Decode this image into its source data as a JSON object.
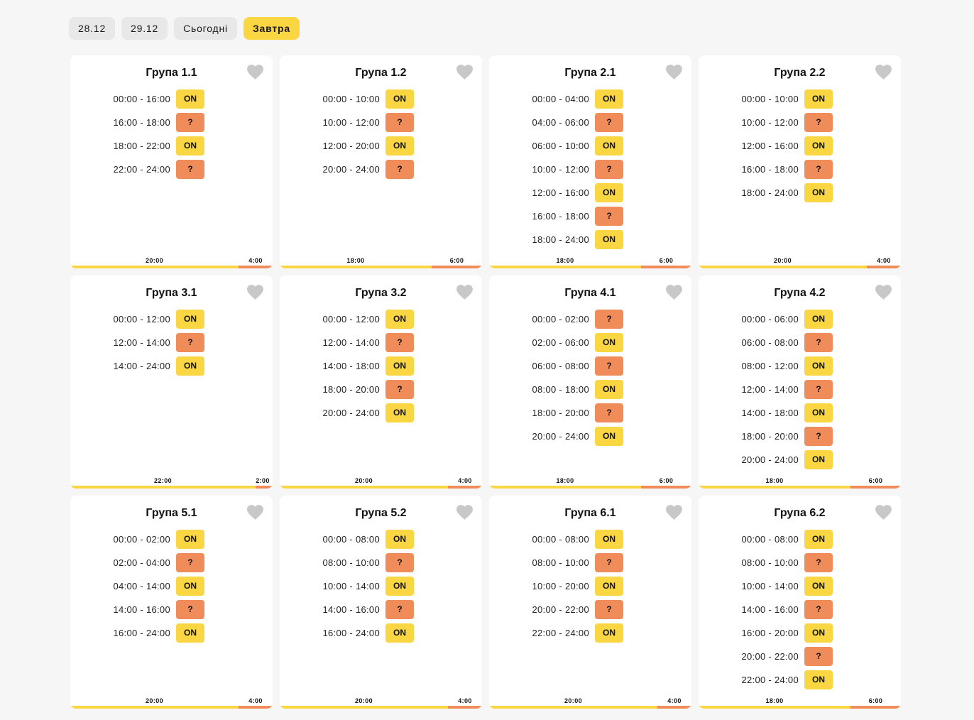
{
  "tabs": [
    {
      "label": "28.12",
      "active": false
    },
    {
      "label": "29.12",
      "active": false
    },
    {
      "label": "Сьогодні",
      "active": false
    },
    {
      "label": "Завтра",
      "active": true
    }
  ],
  "colors": {
    "on": "#fad643",
    "maybe": "#ef8c5a",
    "heart": "#c8c8c8"
  },
  "groups": [
    {
      "title": "Група 1.1",
      "on_total": "20:00",
      "off_total": "4:00",
      "on_fraction": 0.8333,
      "slots": [
        {
          "time": "00:00 - 16:00",
          "status": "ON"
        },
        {
          "time": "16:00 - 18:00",
          "status": "?"
        },
        {
          "time": "18:00 - 22:00",
          "status": "ON"
        },
        {
          "time": "22:00 - 24:00",
          "status": "?"
        }
      ]
    },
    {
      "title": "Група 1.2",
      "on_total": "18:00",
      "off_total": "6:00",
      "on_fraction": 0.75,
      "slots": [
        {
          "time": "00:00 - 10:00",
          "status": "ON"
        },
        {
          "time": "10:00 - 12:00",
          "status": "?"
        },
        {
          "time": "12:00 - 20:00",
          "status": "ON"
        },
        {
          "time": "20:00 - 24:00",
          "status": "?"
        }
      ]
    },
    {
      "title": "Група 2.1",
      "on_total": "18:00",
      "off_total": "6:00",
      "on_fraction": 0.75,
      "slots": [
        {
          "time": "00:00 - 04:00",
          "status": "ON"
        },
        {
          "time": "04:00 - 06:00",
          "status": "?"
        },
        {
          "time": "06:00 - 10:00",
          "status": "ON"
        },
        {
          "time": "10:00 - 12:00",
          "status": "?"
        },
        {
          "time": "12:00 - 16:00",
          "status": "ON"
        },
        {
          "time": "16:00 - 18:00",
          "status": "?"
        },
        {
          "time": "18:00 - 24:00",
          "status": "ON"
        }
      ]
    },
    {
      "title": "Група 2.2",
      "on_total": "20:00",
      "off_total": "4:00",
      "on_fraction": 0.8333,
      "slots": [
        {
          "time": "00:00 - 10:00",
          "status": "ON"
        },
        {
          "time": "10:00 - 12:00",
          "status": "?"
        },
        {
          "time": "12:00 - 16:00",
          "status": "ON"
        },
        {
          "time": "16:00 - 18:00",
          "status": "?"
        },
        {
          "time": "18:00 - 24:00",
          "status": "ON"
        }
      ]
    },
    {
      "title": "Група 3.1",
      "on_total": "22:00",
      "off_total": "2:00",
      "on_fraction": 0.9167,
      "slots": [
        {
          "time": "00:00 - 12:00",
          "status": "ON"
        },
        {
          "time": "12:00 - 14:00",
          "status": "?"
        },
        {
          "time": "14:00 - 24:00",
          "status": "ON"
        }
      ]
    },
    {
      "title": "Група 3.2",
      "on_total": "20:00",
      "off_total": "4:00",
      "on_fraction": 0.8333,
      "slots": [
        {
          "time": "00:00 - 12:00",
          "status": "ON"
        },
        {
          "time": "12:00 - 14:00",
          "status": "?"
        },
        {
          "time": "14:00 - 18:00",
          "status": "ON"
        },
        {
          "time": "18:00 - 20:00",
          "status": "?"
        },
        {
          "time": "20:00 - 24:00",
          "status": "ON"
        }
      ]
    },
    {
      "title": "Група 4.1",
      "on_total": "18:00",
      "off_total": "6:00",
      "on_fraction": 0.75,
      "slots": [
        {
          "time": "00:00 - 02:00",
          "status": "?"
        },
        {
          "time": "02:00 - 06:00",
          "status": "ON"
        },
        {
          "time": "06:00 - 08:00",
          "status": "?"
        },
        {
          "time": "08:00 - 18:00",
          "status": "ON"
        },
        {
          "time": "18:00 - 20:00",
          "status": "?"
        },
        {
          "time": "20:00 - 24:00",
          "status": "ON"
        }
      ]
    },
    {
      "title": "Група 4.2",
      "on_total": "18:00",
      "off_total": "6:00",
      "on_fraction": 0.75,
      "slots": [
        {
          "time": "00:00 - 06:00",
          "status": "ON"
        },
        {
          "time": "06:00 - 08:00",
          "status": "?"
        },
        {
          "time": "08:00 - 12:00",
          "status": "ON"
        },
        {
          "time": "12:00 - 14:00",
          "status": "?"
        },
        {
          "time": "14:00 - 18:00",
          "status": "ON"
        },
        {
          "time": "18:00 - 20:00",
          "status": "?"
        },
        {
          "time": "20:00 - 24:00",
          "status": "ON"
        }
      ]
    },
    {
      "title": "Група 5.1",
      "on_total": "20:00",
      "off_total": "4:00",
      "on_fraction": 0.8333,
      "slots": [
        {
          "time": "00:00 - 02:00",
          "status": "ON"
        },
        {
          "time": "02:00 - 04:00",
          "status": "?"
        },
        {
          "time": "04:00 - 14:00",
          "status": "ON"
        },
        {
          "time": "14:00 - 16:00",
          "status": "?"
        },
        {
          "time": "16:00 - 24:00",
          "status": "ON"
        }
      ]
    },
    {
      "title": "Група 5.2",
      "on_total": "20:00",
      "off_total": "4:00",
      "on_fraction": 0.8333,
      "slots": [
        {
          "time": "00:00 - 08:00",
          "status": "ON"
        },
        {
          "time": "08:00 - 10:00",
          "status": "?"
        },
        {
          "time": "10:00 - 14:00",
          "status": "ON"
        },
        {
          "time": "14:00 - 16:00",
          "status": "?"
        },
        {
          "time": "16:00 - 24:00",
          "status": "ON"
        }
      ]
    },
    {
      "title": "Група 6.1",
      "on_total": "20:00",
      "off_total": "4:00",
      "on_fraction": 0.8333,
      "slots": [
        {
          "time": "00:00 - 08:00",
          "status": "ON"
        },
        {
          "time": "08:00 - 10:00",
          "status": "?"
        },
        {
          "time": "10:00 - 20:00",
          "status": "ON"
        },
        {
          "time": "20:00 - 22:00",
          "status": "?"
        },
        {
          "time": "22:00 - 24:00",
          "status": "ON"
        }
      ]
    },
    {
      "title": "Група 6.2",
      "on_total": "18:00",
      "off_total": "6:00",
      "on_fraction": 0.75,
      "slots": [
        {
          "time": "00:00 - 08:00",
          "status": "ON"
        },
        {
          "time": "08:00 - 10:00",
          "status": "?"
        },
        {
          "time": "10:00 - 14:00",
          "status": "ON"
        },
        {
          "time": "14:00 - 16:00",
          "status": "?"
        },
        {
          "time": "16:00 - 20:00",
          "status": "ON"
        },
        {
          "time": "20:00 - 22:00",
          "status": "?"
        },
        {
          "time": "22:00 - 24:00",
          "status": "ON"
        }
      ]
    }
  ]
}
